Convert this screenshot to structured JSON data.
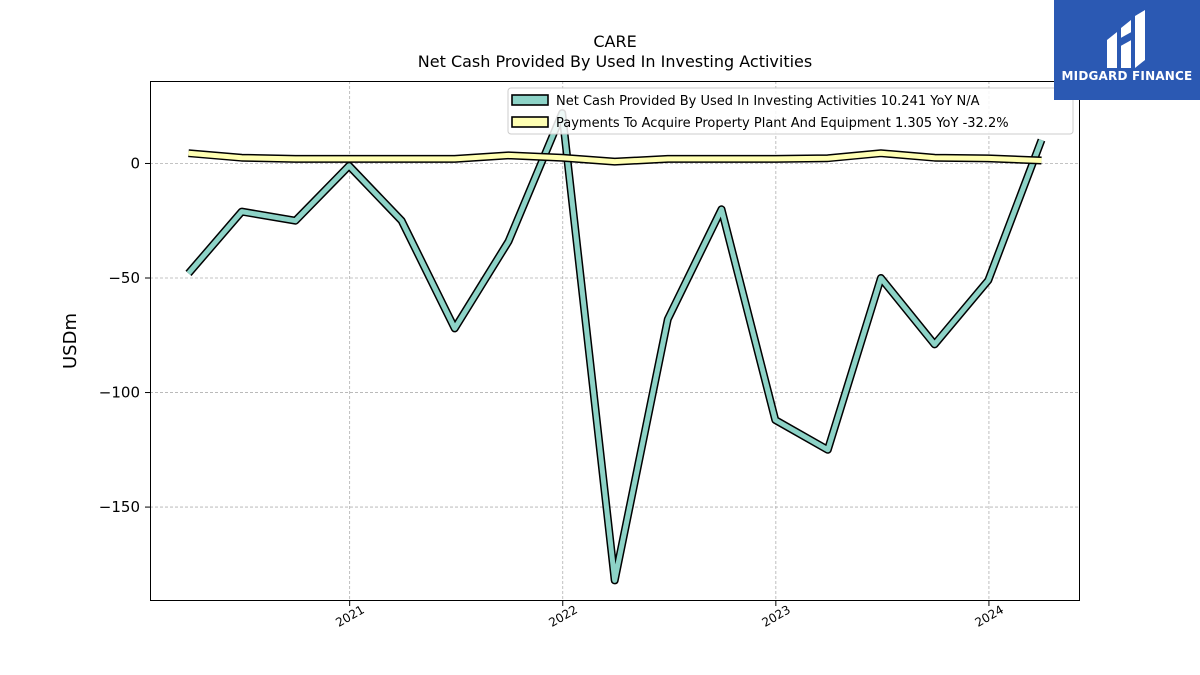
{
  "brand": {
    "name": "MIDGARD FINANCE",
    "logo_icon": "midgard-m-logo-icon",
    "bg_color": "#2b59b3"
  },
  "chart_data": {
    "type": "line",
    "title": "CARE",
    "subtitle": "Net Cash Provided By Used In Investing Activities",
    "ylabel": "USDm",
    "xlabel": "",
    "x_ticks": [
      "2021",
      "2022",
      "2023",
      "2024"
    ],
    "y_ticks": [
      0,
      -50,
      -100,
      -150
    ],
    "y_tick_labels": [
      "0",
      "−50",
      "−100",
      "−150"
    ],
    "ylim": [
      -191,
      36
    ],
    "xlim": [
      "2020-01-25",
      "2024-06-05"
    ],
    "grid": true,
    "legend_position": "top-right",
    "x": [
      "2020-03-31",
      "2020-06-30",
      "2020-09-30",
      "2020-12-31",
      "2021-03-31",
      "2021-06-30",
      "2021-09-30",
      "2021-12-31",
      "2022-03-31",
      "2022-06-30",
      "2022-09-30",
      "2022-12-31",
      "2023-03-31",
      "2023-06-30",
      "2023-09-30",
      "2023-12-31",
      "2024-03-31"
    ],
    "series": [
      {
        "name": "Net Cash Provided By Used In Investing Activities",
        "legend_label": "Net Cash Provided By Used In Investing Activities  10.241 YoY N/A",
        "color": "#8dd3c7",
        "values": [
          -48,
          -21,
          -25,
          -1,
          -25,
          -72,
          -34,
          22,
          -182,
          -68,
          -20,
          -112,
          -125,
          -50,
          -79,
          -51,
          10.241
        ]
      },
      {
        "name": "Payments To Acquire Property Plant And Equipment",
        "legend_label": "Payments To Acquire Property Plant And Equipment  1.305 YoY -32.2%",
        "color": "#ffffb3",
        "values": [
          4.5,
          2.5,
          2,
          2,
          2,
          2,
          3.5,
          2.5,
          0.8,
          2,
          2,
          2,
          2.3,
          4.5,
          2.5,
          2.2,
          1.305
        ]
      }
    ]
  }
}
